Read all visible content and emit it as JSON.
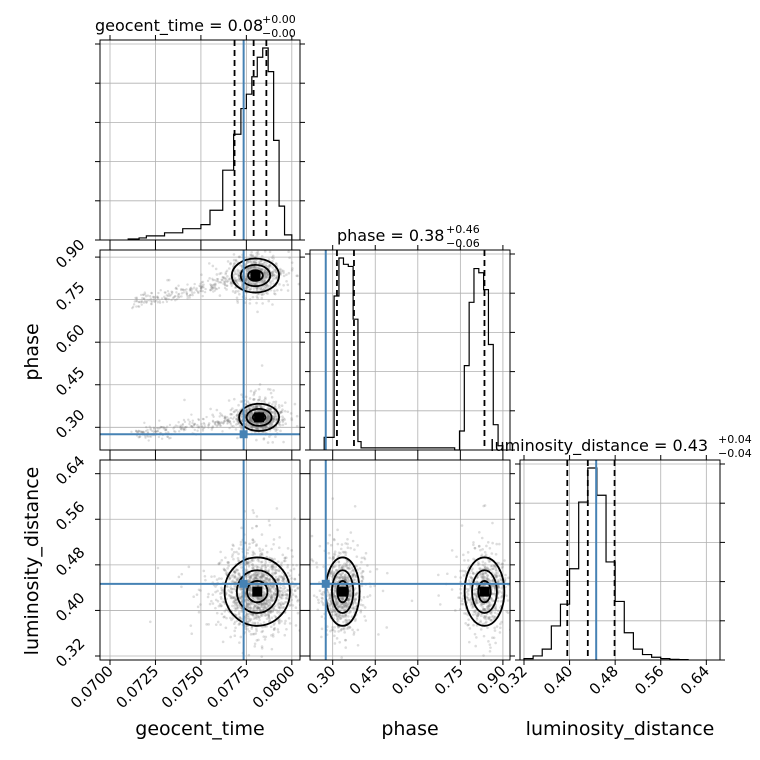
{
  "chart_data": {
    "type": "corner",
    "parameters": [
      "geocent_time",
      "phase",
      "luminosity_distance"
    ],
    "axis_labels": {
      "geocent_time": "geocent_time",
      "phase": "phase",
      "luminosity_distance": "luminosity_distance"
    },
    "titles": [
      {
        "param": "geocent_time",
        "prefix": "geocent_time = 0.08",
        "sup": "+0.00",
        "sub": "−0.00"
      },
      {
        "param": "phase",
        "prefix": "phase = 0.38",
        "sup": "+0.46",
        "sub": "−0.06"
      },
      {
        "param": "luminosity_distance",
        "prefix": "luminosity_distance = 0.43",
        "sup": "+0.04",
        "sub": "−0.04"
      }
    ],
    "ranges": {
      "geocent_time": [
        0.06945,
        0.08045
      ],
      "phase": [
        0.22,
        0.925
      ],
      "luminosity_distance": [
        0.313,
        0.664
      ]
    },
    "ticks": {
      "geocent_time": {
        "values": [
          0.07,
          0.0725,
          0.075,
          0.0775,
          0.08
        ],
        "labels": [
          "0.0700",
          "0.0725",
          "0.0750",
          "0.0775",
          "0.0800"
        ]
      },
      "phase": {
        "values": [
          0.3,
          0.45,
          0.6,
          0.75,
          0.9
        ],
        "labels": [
          "0.30",
          "0.45",
          "0.60",
          "0.75",
          "0.90"
        ]
      },
      "luminosity_distance": {
        "values": [
          0.32,
          0.4,
          0.48,
          0.56,
          0.64
        ],
        "labels": [
          "0.32",
          "0.40",
          "0.48",
          "0.56",
          "0.64"
        ]
      }
    },
    "truths": {
      "geocent_time": 0.07735,
      "phase": 0.2755,
      "luminosity_distance": 0.4467
    },
    "quantiles": {
      "geocent_time": [
        0.07685,
        0.0779,
        0.0786
      ],
      "phase": [
        0.315,
        0.375,
        0.835
      ],
      "luminosity_distance": [
        0.396,
        0.432,
        0.479
      ]
    },
    "histograms": {
      "geocent_time": {
        "edges": [
          0.071,
          0.0716,
          0.072,
          0.073,
          0.074,
          0.075,
          0.0755,
          0.0762,
          0.0768,
          0.0772,
          0.0775,
          0.0778,
          0.0781,
          0.0784,
          0.0787,
          0.079,
          0.0793,
          0.0796,
          0.08
        ],
        "counts": [
          1,
          2,
          4,
          7,
          11,
          15,
          29,
          68,
          103,
          128,
          142,
          159,
          178,
          187,
          164,
          97,
          33,
          5
        ]
      },
      "phase": {
        "edges": [
          0.27,
          0.305,
          0.322,
          0.338,
          0.355,
          0.372,
          0.389,
          0.4,
          0.73,
          0.747,
          0.764,
          0.781,
          0.798,
          0.815,
          0.832,
          0.849,
          0.866,
          0.883,
          0.9
        ],
        "counts": [
          6,
          73,
          91,
          88,
          87,
          62,
          4,
          1,
          0,
          9,
          40,
          70,
          86,
          84,
          76,
          50,
          12,
          2
        ]
      },
      "luminosity_distance": {
        "edges": [
          0.32,
          0.336,
          0.352,
          0.368,
          0.384,
          0.4,
          0.416,
          0.432,
          0.448,
          0.464,
          0.48,
          0.496,
          0.512,
          0.528,
          0.544,
          0.56,
          0.576,
          0.592,
          0.608
        ],
        "counts": [
          1,
          3,
          8,
          25,
          41,
          67,
          116,
          141,
          121,
          72,
          43,
          20,
          8,
          4,
          2,
          1,
          0.5,
          0.3
        ]
      }
    },
    "scatter_modes": {
      "geocent_time__phase": [
        {
          "cx": 0.0782,
          "cy": 0.335,
          "sx": 0.00055,
          "sy": 0.024,
          "w": 0.55
        },
        {
          "cx": 0.078,
          "cy": 0.835,
          "sx": 0.00065,
          "sy": 0.03,
          "w": 0.45
        }
      ],
      "geocent_time__luminosity_distance": [
        {
          "cx": 0.0781,
          "cy": 0.433,
          "sx": 0.0009,
          "sy": 0.03,
          "w": 1.0
        }
      ],
      "phase__luminosity_distance": [
        {
          "cx": 0.335,
          "cy": 0.433,
          "sx": 0.03,
          "sy": 0.03,
          "w": 0.55
        },
        {
          "cx": 0.835,
          "cy": 0.433,
          "sx": 0.035,
          "sy": 0.03,
          "w": 0.45
        }
      ]
    },
    "grid": true,
    "truth_color": "#4682b4"
  }
}
